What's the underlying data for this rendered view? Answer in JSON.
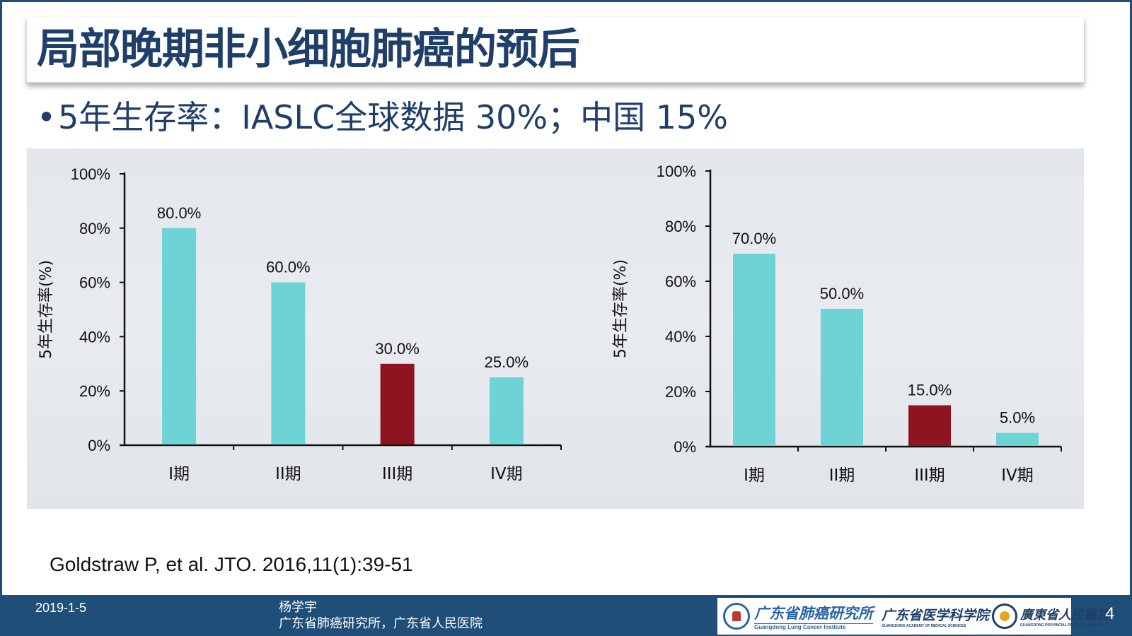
{
  "header": {
    "title": "局部晚期非小细胞肺癌的预后"
  },
  "bullet": {
    "text": "5年生存率：IASLC全球数据 30%；中国 15%"
  },
  "colors": {
    "normal_bar": "#6ed3d5",
    "highlight_bar": "#8e1422",
    "title": "#1f3f6a",
    "footer": "#1f4e79"
  },
  "chart_data": [
    {
      "type": "bar",
      "categories": [
        "I期",
        "II期",
        "III期",
        "IV期"
      ],
      "values": [
        80.0,
        60.0,
        30.0,
        25.0
      ],
      "value_labels": [
        "80.0%",
        "60.0%",
        "30.0%",
        "25.0%"
      ],
      "highlight_index": 2,
      "ylabel": "5年生存率(%)",
      "ylim": [
        0,
        100
      ],
      "yticks": [
        0,
        20,
        40,
        60,
        80,
        100
      ],
      "ytick_labels": [
        "0%",
        "20%",
        "40%",
        "60%",
        "80%",
        "100%"
      ],
      "grid": false
    },
    {
      "type": "bar",
      "categories": [
        "I期",
        "II期",
        "III期",
        "IV期"
      ],
      "values": [
        70.0,
        50.0,
        15.0,
        5.0
      ],
      "value_labels": [
        "70.0%",
        "50.0%",
        "15.0%",
        "5.0%"
      ],
      "highlight_index": 2,
      "ylabel": "5年生存率(%)",
      "ylim": [
        0,
        100
      ],
      "yticks": [
        0,
        20,
        40,
        60,
        80,
        100
      ],
      "ytick_labels": [
        "0%",
        "20%",
        "40%",
        "60%",
        "80%",
        "100%"
      ],
      "grid": false
    }
  ],
  "citation": {
    "text": "Goldstraw P, et al. JTO. 2016,11(1):39-51"
  },
  "footer": {
    "date": "2019-1-5",
    "author_name": "杨学宇",
    "author_affiliation": "广东省肺癌研究所，广东省人民医院",
    "logos": {
      "lung_cancer_institute": "广东省肺癌研究所",
      "lung_cancer_institute_en": "Guangdong Lung Cancer Institute",
      "academy": "广东省医学科学院",
      "academy_en": "GUANGDONG ACADEMY OF MEDICAL SCIENCES",
      "hospital": "廣東省人民醫院",
      "hospital_en": "GUANGDONG PROVINCIAL PEOPLE'S HOSPITAL"
    },
    "page_number": "4"
  }
}
